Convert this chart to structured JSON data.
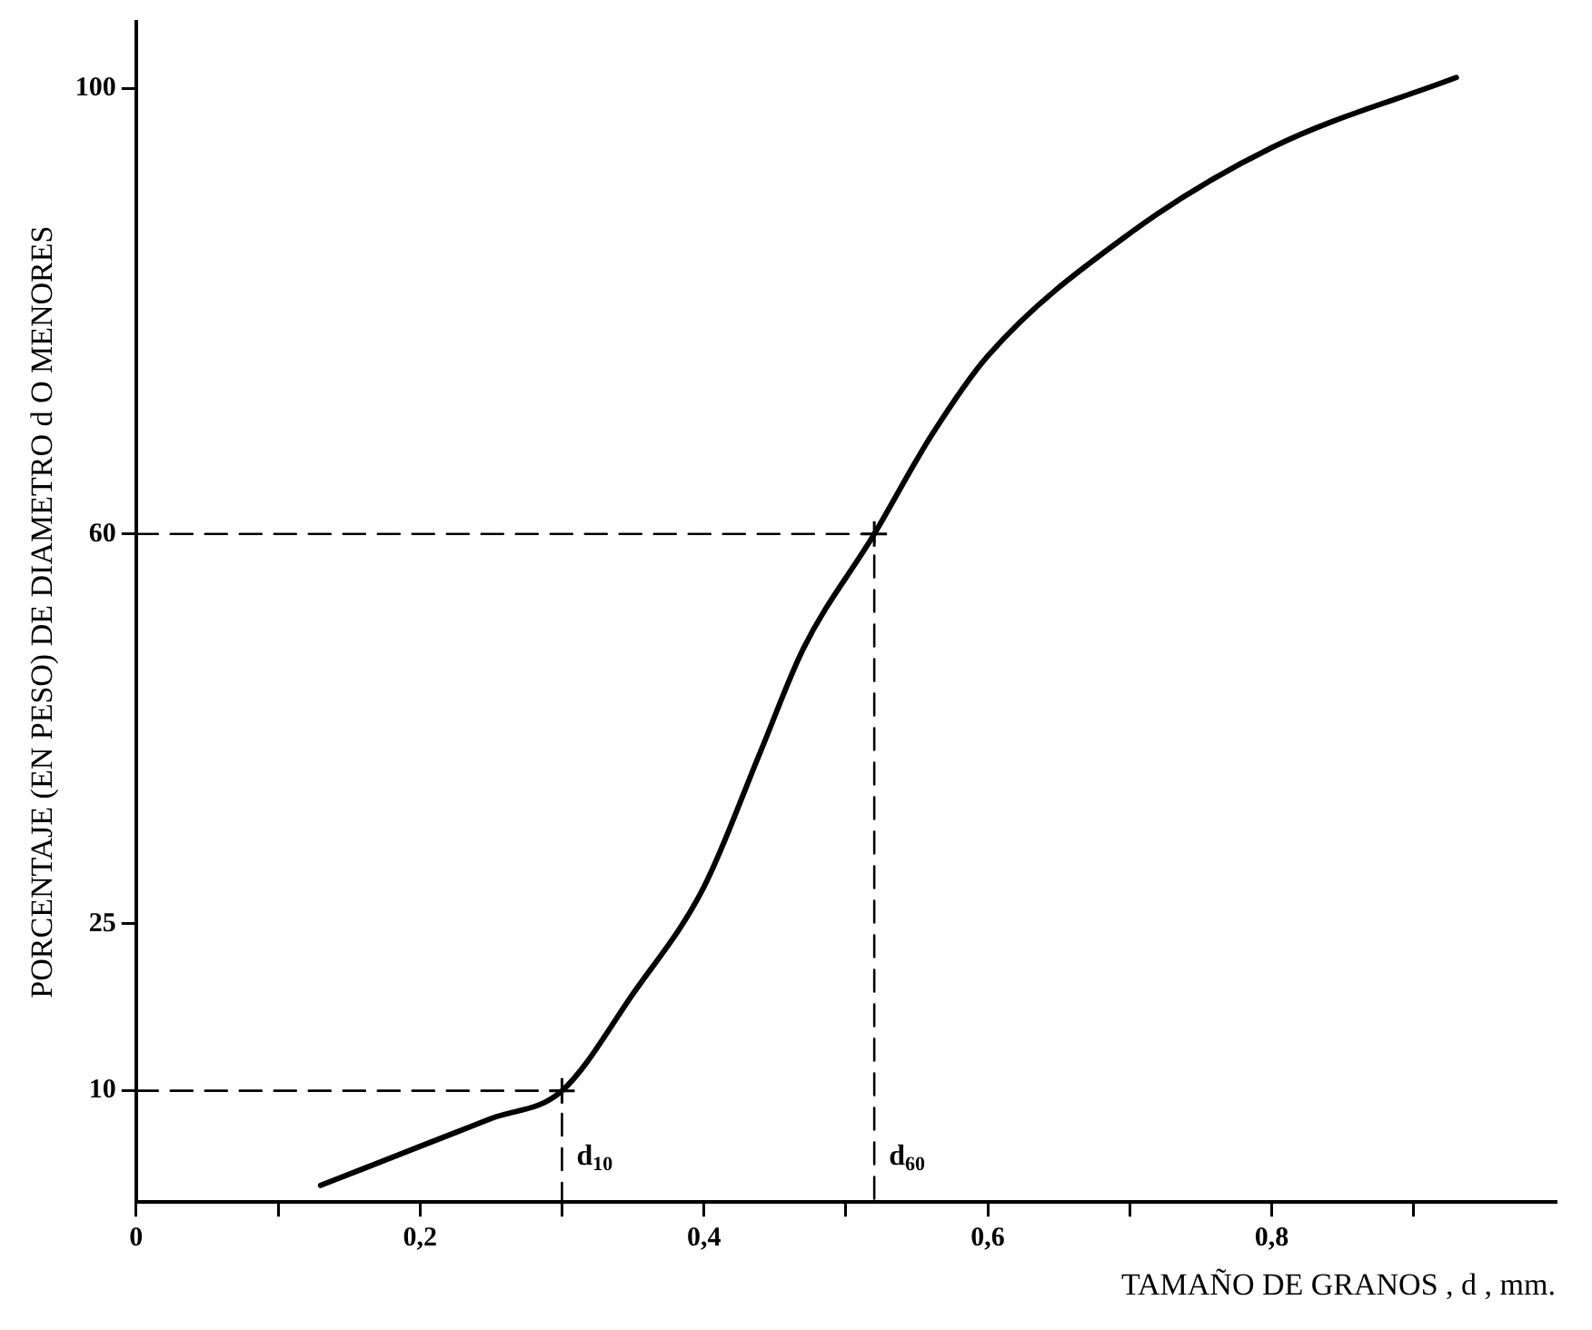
{
  "chart_data": {
    "type": "line",
    "xlabel": "TAMAÑO DE GRANOS , d , mm.",
    "ylabel": "PORCENTAJE (EN PESO) DE DIAMETRO d O MENORES",
    "xlim": [
      0,
      1.0
    ],
    "ylim": [
      0,
      106
    ],
    "xticks": [
      0,
      {
        "value": 0.1,
        "label": null
      },
      {
        "value": 0.2,
        "label": "0,2"
      },
      {
        "value": 0.3,
        "label": null
      },
      {
        "value": 0.4,
        "label": "0,4"
      },
      {
        "value": 0.5,
        "label": null
      },
      {
        "value": 0.6,
        "label": "0,6"
      },
      {
        "value": 0.7,
        "label": null
      },
      {
        "value": 0.8,
        "label": "0,8"
      },
      {
        "value": 0.9,
        "label": null
      }
    ],
    "yticks": [
      10,
      25,
      60,
      100
    ],
    "series": [
      {
        "color": "#000000",
        "marker": "none",
        "line_style": "solid",
        "x": [
          0.13,
          0.2,
          0.25,
          0.3,
          0.35,
          0.4,
          0.44,
          0.47,
          0.52,
          0.56,
          0.6,
          0.7,
          0.8,
          0.93
        ],
        "values": [
          1.5,
          5,
          7.5,
          10,
          18.7,
          28.3,
          40.5,
          49.7,
          60,
          68.8,
          76,
          87,
          94.7,
          101
        ]
      },
      {
        "color": "#000000",
        "marker": "none",
        "line_style": "dashed",
        "x": [
          0,
          0.3,
          0.3
        ],
        "values": [
          10,
          10,
          0
        ]
      },
      {
        "color": "#000000",
        "marker": "none",
        "line_style": "dashed",
        "x": [
          0,
          0.52,
          0.52
        ],
        "values": [
          60,
          60,
          0
        ]
      },
      {
        "type": "scatter",
        "color": "#000000",
        "marker": "cross",
        "x": [
          0.3,
          0.52
        ],
        "values": [
          10,
          60
        ]
      }
    ],
    "annotations": [
      {
        "text": "d$_{10}$",
        "x": 0.3,
        "y": 4
      },
      {
        "text": "d$_{60}$",
        "x": 0.52,
        "y": 4
      }
    ]
  }
}
